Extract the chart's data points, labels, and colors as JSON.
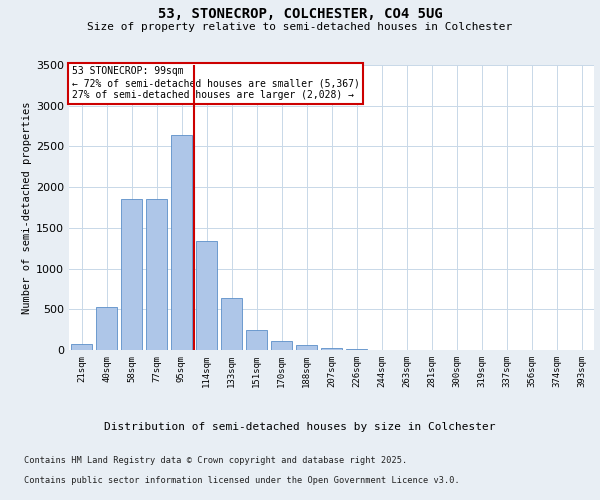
{
  "title_line1": "53, STONECROP, COLCHESTER, CO4 5UG",
  "title_line2": "Size of property relative to semi-detached houses in Colchester",
  "xlabel": "Distribution of semi-detached houses by size in Colchester",
  "ylabel": "Number of semi-detached properties",
  "categories": [
    "21sqm",
    "40sqm",
    "58sqm",
    "77sqm",
    "95sqm",
    "114sqm",
    "133sqm",
    "151sqm",
    "170sqm",
    "188sqm",
    "207sqm",
    "226sqm",
    "244sqm",
    "263sqm",
    "281sqm",
    "300sqm",
    "319sqm",
    "337sqm",
    "356sqm",
    "374sqm",
    "393sqm"
  ],
  "values": [
    75,
    530,
    1850,
    1850,
    2640,
    1340,
    640,
    240,
    110,
    60,
    20,
    8,
    5,
    2,
    2,
    2,
    1,
    1,
    1,
    1,
    1
  ],
  "bar_color": "#aec6e8",
  "bar_edge_color": "#5b8fc9",
  "vline_x_index": 4.5,
  "vline_color": "#cc0000",
  "annotation_text": "53 STONECROP: 99sqm\n← 72% of semi-detached houses are smaller (5,367)\n27% of semi-detached houses are larger (2,028) →",
  "annotation_box_color": "#ffffff",
  "annotation_box_edge": "#cc0000",
  "ylim": [
    0,
    3500
  ],
  "yticks": [
    0,
    500,
    1000,
    1500,
    2000,
    2500,
    3000,
    3500
  ],
  "footer_line1": "Contains HM Land Registry data © Crown copyright and database right 2025.",
  "footer_line2": "Contains public sector information licensed under the Open Government Licence v3.0.",
  "bg_color": "#e8eef4",
  "plot_bg_color": "#ffffff",
  "grid_color": "#c8d8e8"
}
